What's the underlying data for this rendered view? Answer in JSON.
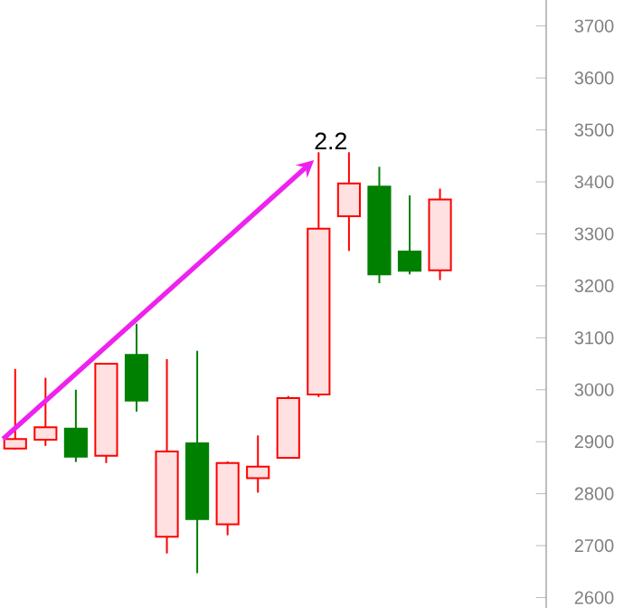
{
  "chart_data": {
    "type": "candlestick",
    "categories": [
      null,
      null,
      null,
      null,
      null,
      null,
      null,
      null,
      null,
      null,
      null,
      null,
      null,
      null,
      null,
      null,
      null,
      null
    ],
    "ohlc": [
      [
        2887,
        3040,
        2885,
        2905
      ],
      [
        2904,
        3023,
        2892,
        2928
      ],
      [
        2925,
        3000,
        2861,
        2871
      ],
      [
        2873,
        3050,
        2859,
        3050
      ],
      [
        3067,
        3127,
        2958,
        2979
      ],
      [
        2717,
        3059,
        2685,
        2881
      ],
      [
        2897,
        3075,
        2647,
        2751
      ],
      [
        2741,
        2862,
        2720,
        2859
      ],
      [
        2830,
        2912,
        2802,
        2852
      ],
      [
        2869,
        2988,
        2869,
        2984
      ],
      [
        2991,
        3457,
        2986,
        3310
      ],
      [
        3334,
        3457,
        3267,
        3397
      ],
      [
        3391,
        3429,
        3205,
        3222
      ],
      [
        3266,
        3374,
        3222,
        3229
      ],
      [
        3230,
        3387,
        3211,
        3366
      ],
      null,
      null,
      null
    ],
    "colors": [
      "#ff0000",
      "#ff0000",
      "#008000",
      "#ff0000",
      "#008000",
      "#ff0000",
      "#008000",
      "#ff0000",
      "#ff0000",
      "#ff0000",
      "#ff0000",
      "#ff0000",
      "#008000",
      "#008000",
      "#ff0000",
      null,
      null,
      null
    ],
    "ylim": [
      2580,
      3750
    ],
    "yticks": [
      2600,
      2700,
      2800,
      2900,
      3000,
      3100,
      3200,
      3300,
      3400,
      3500,
      3600,
      3700
    ],
    "tick_labels": "y",
    "grid": false,
    "annotations": [
      "2.2"
    ]
  }
}
